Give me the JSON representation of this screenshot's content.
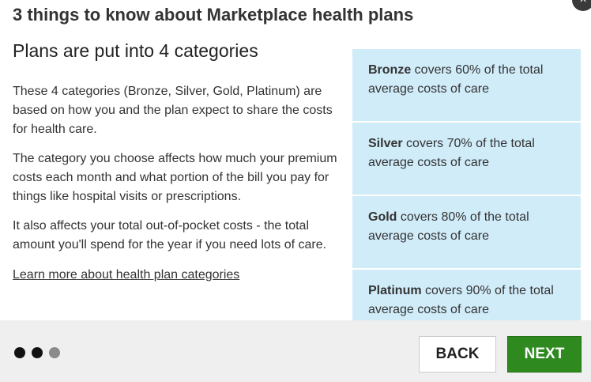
{
  "modal": {
    "title": "3 things to know about Marketplace health plans",
    "close_symbol": "×"
  },
  "content": {
    "subtitle": "Plans are put into 4 categories",
    "paragraphs": [
      "These 4 categories (Bronze, Silver, Gold, Platinum) are based on how you and the plan expect to share the costs for health care.",
      "The category you choose affects how much your premium costs each month and what portion of the bill you pay for things like hospital visits or prescriptions.",
      "It also affects your total out-of-pocket costs - the total amount you'll spend for the year if you need lots of care."
    ],
    "link_label": "Learn more about health plan categories"
  },
  "tiers": [
    {
      "name": "Bronze",
      "text": " covers 60% of the total average costs of care"
    },
    {
      "name": "Silver",
      "text": " covers 70% of the total average costs of care"
    },
    {
      "name": "Gold",
      "text": " covers 80% of the total average costs of care"
    },
    {
      "name": "Platinum",
      "text": " covers 90% of the total average costs of care"
    }
  ],
  "footer": {
    "progress": {
      "current_step": 2,
      "total_steps": 3
    },
    "back_label": "BACK",
    "next_label": "NEXT"
  },
  "colors": {
    "tier_background": "#d0ecf9",
    "next_button": "#2e8a1f",
    "footer_background": "#efefef"
  }
}
